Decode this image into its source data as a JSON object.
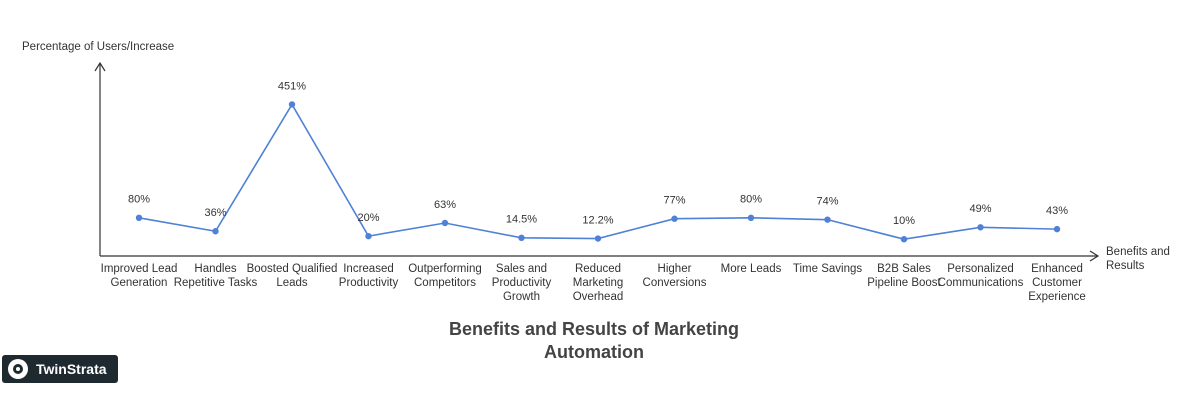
{
  "chart_data": {
    "type": "line",
    "title": "Benefits and Results of Marketing Automation",
    "y_label": "Percentage of Users/Increase",
    "x_label": "Benefits and Results",
    "categories": [
      "Improved Lead Generation",
      "Handles Repetitive Tasks",
      "Boosted Qualified Leads",
      "Increased Productivity",
      "Outperforming Competitors",
      "Sales and Productivity Growth",
      "Reduced Marketing Overhead",
      "Higher Conversions",
      "More Leads",
      "Time Savings",
      "B2B Sales Pipeline Boost",
      "Personalized Communications",
      "Enhanced Customer Experience"
    ],
    "values": [
      80,
      36,
      451,
      20,
      63,
      14.5,
      12.2,
      77,
      80,
      74,
      10,
      49,
      43
    ],
    "value_labels": [
      "80%",
      "36%",
      "451%",
      "20%",
      "63%",
      "14.5%",
      "12.2%",
      "77%",
      "80%",
      "74%",
      "10%",
      "49%",
      "43%"
    ],
    "color": "#4f81d6",
    "ylim": [
      -45,
      590
    ]
  },
  "logo": {
    "text": "TwinStrata"
  }
}
